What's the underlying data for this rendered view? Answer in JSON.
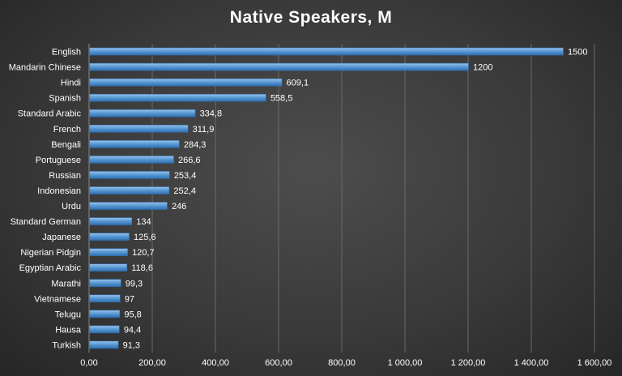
{
  "chart_data": {
    "type": "bar",
    "orientation": "horizontal",
    "title": "Native Speakers, M",
    "xlabel": "",
    "ylabel": "",
    "xlim": [
      0,
      1600
    ],
    "grid": true,
    "colors": {
      "bar": "#5b9bd5",
      "bar_light": "#9cc3ea",
      "bar_dark": "#2f6fb0",
      "text": "#ffffff"
    },
    "categories": [
      "English",
      "Mandarin Chinese",
      "Hindi",
      "Spanish",
      "Standard Arabic",
      "French",
      "Bengali",
      "Portuguese",
      "Russian",
      "Indonesian",
      "Urdu",
      "Standard German",
      "Japanese",
      "Nigerian Pidgin",
      "Egyptian Arabic",
      "Marathi",
      "Vietnamese",
      "Telugu",
      "Hausa",
      "Turkish"
    ],
    "values": [
      1500,
      1200,
      609.1,
      558.5,
      334.8,
      311.9,
      284.3,
      266.6,
      253.4,
      252.4,
      246,
      134,
      125.6,
      120.7,
      118.6,
      99.3,
      97,
      95.8,
      94.4,
      91.3
    ],
    "value_labels": [
      "1500",
      "1200",
      "609,1",
      "558,5",
      "334,8",
      "311,9",
      "284,3",
      "266,6",
      "253,4",
      "252,4",
      "246",
      "134",
      "125,6",
      "120,7",
      "118,6",
      "99,3",
      "97",
      "95,8",
      "94,4",
      "91,3"
    ],
    "x_ticks": [
      0,
      200,
      400,
      600,
      800,
      1000,
      1200,
      1400,
      1600
    ],
    "x_tick_labels": [
      "0,00",
      "200,00",
      "400,00",
      "600,00",
      "800,00",
      "1 000,00",
      "1 200,00",
      "1 400,00",
      "1 600,00"
    ]
  }
}
